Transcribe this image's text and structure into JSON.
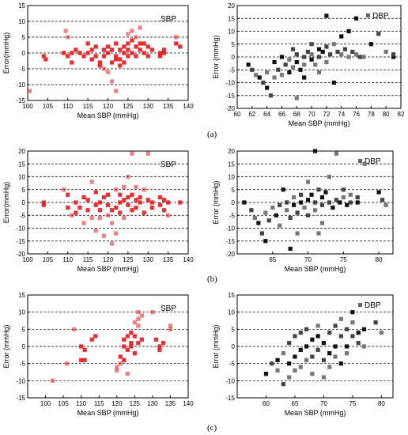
{
  "chart_data": [
    {
      "type": "scatter",
      "panel": "a",
      "side": "left",
      "legend": "SBP",
      "legend_position": "top-right",
      "xlabel": "Mean SBP (mmHg)",
      "ylabel": "Error(mmHg)",
      "xlim": [
        100,
        140
      ],
      "ylim": [
        -15,
        15
      ],
      "xticks": [
        100,
        105,
        110,
        115,
        120,
        125,
        130,
        135,
        140
      ],
      "yticks": [
        -15,
        -10,
        -5,
        0,
        5,
        10,
        15
      ],
      "grid": "horizontal-dashed",
      "color": "#e41a1c",
      "points": [
        [
          100.5,
          -12
        ],
        [
          104,
          -1
        ],
        [
          104.5,
          -2
        ],
        [
          109,
          0
        ],
        [
          109.5,
          7
        ],
        [
          110,
          5
        ],
        [
          110,
          -1
        ],
        [
          111,
          -3
        ],
        [
          111,
          0
        ],
        [
          112,
          1
        ],
        [
          113,
          0
        ],
        [
          114,
          -1
        ],
        [
          115,
          0
        ],
        [
          115,
          3
        ],
        [
          116,
          1
        ],
        [
          116,
          -2
        ],
        [
          117,
          -1
        ],
        [
          117,
          2
        ],
        [
          118,
          -3
        ],
        [
          118,
          -4
        ],
        [
          119,
          -5
        ],
        [
          119,
          -1
        ],
        [
          119,
          1
        ],
        [
          120,
          -6
        ],
        [
          120,
          0
        ],
        [
          120,
          2
        ],
        [
          121,
          -3
        ],
        [
          121,
          -9
        ],
        [
          121,
          1
        ],
        [
          122,
          -12
        ],
        [
          122,
          -1
        ],
        [
          122,
          -2
        ],
        [
          122,
          3
        ],
        [
          123,
          1
        ],
        [
          123,
          -4
        ],
        [
          123,
          -2
        ],
        [
          124,
          0
        ],
        [
          124,
          2
        ],
        [
          124,
          -3
        ],
        [
          125,
          3
        ],
        [
          125,
          1
        ],
        [
          125,
          6
        ],
        [
          125,
          -1
        ],
        [
          126,
          0
        ],
        [
          126,
          4
        ],
        [
          126,
          7
        ],
        [
          127,
          2
        ],
        [
          127,
          5
        ],
        [
          127,
          -1
        ],
        [
          128,
          3
        ],
        [
          128,
          8
        ],
        [
          128,
          1
        ],
        [
          129,
          0
        ],
        [
          129,
          3
        ],
        [
          130,
          -1
        ],
        [
          130,
          2
        ],
        [
          131,
          1
        ],
        [
          133,
          0
        ],
        [
          133,
          -1
        ],
        [
          134,
          0
        ],
        [
          134,
          1
        ],
        [
          137,
          5
        ],
        [
          137,
          3
        ],
        [
          138,
          2
        ]
      ]
    },
    {
      "type": "scatter",
      "panel": "a",
      "side": "right",
      "legend": "DBP",
      "legend_position": "top-right",
      "xlabel": "Mean SBP (mmHg)",
      "ylabel": "Error (mmHg)",
      "xlim": [
        60,
        82
      ],
      "ylim": [
        -20,
        20
      ],
      "xticks": [
        60,
        62,
        64,
        66,
        68,
        70,
        72,
        74,
        76,
        78,
        80,
        82
      ],
      "yticks": [
        -20,
        -15,
        -10,
        -5,
        0,
        5,
        10,
        15,
        20
      ],
      "grid": "horizontal-dashed",
      "color": "#333333",
      "points": [
        [
          61.5,
          -3
        ],
        [
          62,
          -5
        ],
        [
          62.5,
          -7
        ],
        [
          63,
          -8
        ],
        [
          63.5,
          -10
        ],
        [
          64,
          -6
        ],
        [
          64,
          -12
        ],
        [
          64.5,
          -15
        ],
        [
          65,
          -8
        ],
        [
          65,
          -2
        ],
        [
          65.5,
          -5
        ],
        [
          66,
          -7
        ],
        [
          66,
          0
        ],
        [
          66.5,
          -3
        ],
        [
          67,
          -1
        ],
        [
          67,
          -6
        ],
        [
          67.5,
          3
        ],
        [
          67.5,
          -4
        ],
        [
          68,
          -2
        ],
        [
          68,
          1
        ],
        [
          68,
          -16
        ],
        [
          68.5,
          -5
        ],
        [
          69,
          0
        ],
        [
          69,
          -3
        ],
        [
          69,
          -8
        ],
        [
          69.5,
          2
        ],
        [
          70,
          1
        ],
        [
          70,
          -1
        ],
        [
          70,
          5
        ],
        [
          70.5,
          -3
        ],
        [
          71,
          3
        ],
        [
          71,
          0
        ],
        [
          71,
          -6
        ],
        [
          71.5,
          2
        ],
        [
          72,
          4
        ],
        [
          72,
          -2
        ],
        [
          72,
          16
        ],
        [
          72.5,
          1
        ],
        [
          73,
          5
        ],
        [
          73,
          -10
        ],
        [
          73.5,
          2
        ],
        [
          74,
          1
        ],
        [
          74,
          8
        ],
        [
          74.5,
          3
        ],
        [
          75,
          0
        ],
        [
          75,
          10
        ],
        [
          75.5,
          2
        ],
        [
          76,
          1
        ],
        [
          76,
          15
        ],
        [
          76.5,
          0
        ],
        [
          77,
          0
        ],
        [
          78,
          5
        ],
        [
          79,
          9
        ],
        [
          80,
          2
        ],
        [
          81,
          0
        ],
        [
          81,
          1
        ]
      ]
    },
    {
      "type": "scatter",
      "panel": "b",
      "side": "left",
      "legend": "SBP",
      "legend_position": "top-right",
      "xlabel": "Mean SBP (mmHg)",
      "ylabel": "Error(mmHg)",
      "xlim": [
        100,
        140
      ],
      "ylim": [
        -20,
        20
      ],
      "xticks": [
        100,
        105,
        110,
        115,
        120,
        125,
        130,
        135,
        140
      ],
      "yticks": [
        -20,
        -15,
        -10,
        -5,
        0,
        5,
        10,
        15,
        20
      ],
      "grid": "horizontal-dashed",
      "color": "#e41a1c",
      "points": [
        [
          104,
          0
        ],
        [
          104,
          -1
        ],
        [
          109,
          5
        ],
        [
          110,
          -2
        ],
        [
          110,
          3
        ],
        [
          111,
          -5
        ],
        [
          112,
          0
        ],
        [
          112,
          -4
        ],
        [
          113,
          -2
        ],
        [
          114,
          -8
        ],
        [
          114,
          2
        ],
        [
          115,
          1
        ],
        [
          115,
          -3
        ],
        [
          116,
          -6
        ],
        [
          116,
          8
        ],
        [
          117,
          -1
        ],
        [
          117,
          -11
        ],
        [
          117,
          4
        ],
        [
          118,
          0
        ],
        [
          118,
          -3
        ],
        [
          118,
          -6
        ],
        [
          119,
          2
        ],
        [
          119,
          -13
        ],
        [
          120,
          -1
        ],
        [
          120,
          -5
        ],
        [
          120,
          3
        ],
        [
          121,
          -3
        ],
        [
          121,
          -8
        ],
        [
          121,
          -16
        ],
        [
          122,
          -2
        ],
        [
          122,
          5
        ],
        [
          122,
          -12
        ],
        [
          123,
          0
        ],
        [
          123,
          -4
        ],
        [
          123,
          3
        ],
        [
          124,
          1
        ],
        [
          124,
          -6
        ],
        [
          124,
          6
        ],
        [
          125,
          2
        ],
        [
          125,
          -1
        ],
        [
          125,
          10
        ],
        [
          126,
          3
        ],
        [
          126,
          -3
        ],
        [
          126,
          19
        ],
        [
          127,
          1
        ],
        [
          127,
          -2
        ],
        [
          127,
          6
        ],
        [
          128,
          0
        ],
        [
          128,
          2
        ],
        [
          129,
          5
        ],
        [
          129,
          -4
        ],
        [
          130,
          19
        ],
        [
          130,
          1
        ],
        [
          131,
          0
        ],
        [
          131,
          -2
        ],
        [
          133,
          -1
        ],
        [
          133,
          2
        ],
        [
          134,
          1
        ],
        [
          134,
          -3
        ],
        [
          135,
          0
        ],
        [
          135,
          -5
        ],
        [
          138,
          0
        ]
      ]
    },
    {
      "type": "scatter",
      "panel": "b",
      "side": "right",
      "legend": "DBP",
      "legend_position": "top-right",
      "xlabel": "Mean SBP (mmHg)",
      "ylabel": "Error (mmHg)",
      "xlim": [
        60,
        82
      ],
      "ylim": [
        -20,
        20
      ],
      "xticks": [
        65,
        70,
        75,
        80
      ],
      "yticks": [
        -20,
        -15,
        -10,
        -5,
        0,
        5,
        10,
        15,
        20
      ],
      "grid": "horizontal-dashed",
      "color": "#333333",
      "points": [
        [
          61,
          0
        ],
        [
          62,
          -3
        ],
        [
          62.5,
          -6
        ],
        [
          63,
          -8
        ],
        [
          63.5,
          -12
        ],
        [
          64,
          -4
        ],
        [
          64,
          -15
        ],
        [
          64.5,
          -7
        ],
        [
          65,
          -2
        ],
        [
          65.5,
          -5
        ],
        [
          66,
          -1
        ],
        [
          66,
          -9
        ],
        [
          66.5,
          5
        ],
        [
          67,
          0
        ],
        [
          67,
          -3
        ],
        [
          67.5,
          -18
        ],
        [
          67.5,
          -6
        ],
        [
          68,
          2
        ],
        [
          68,
          -1
        ],
        [
          68.5,
          -4
        ],
        [
          68.5,
          -12
        ],
        [
          69,
          0
        ],
        [
          69,
          3
        ],
        [
          69.5,
          -2
        ],
        [
          70,
          1
        ],
        [
          70,
          -5
        ],
        [
          70,
          8
        ],
        [
          70.5,
          3
        ],
        [
          71,
          0
        ],
        [
          71,
          -3
        ],
        [
          71,
          20
        ],
        [
          71.5,
          5
        ],
        [
          71.5,
          -12
        ],
        [
          72,
          2
        ],
        [
          72,
          -1
        ],
        [
          72,
          -8
        ],
        [
          72.5,
          4
        ],
        [
          73,
          0
        ],
        [
          73,
          10
        ],
        [
          73.5,
          -2
        ],
        [
          74,
          1
        ],
        [
          74,
          19
        ],
        [
          74.5,
          0
        ],
        [
          75,
          5
        ],
        [
          75,
          2
        ],
        [
          75.5,
          -1
        ],
        [
          76,
          0
        ],
        [
          76,
          3
        ],
        [
          77,
          0
        ],
        [
          77,
          2
        ],
        [
          78,
          15
        ],
        [
          80,
          4
        ],
        [
          80.5,
          1
        ],
        [
          81,
          -1
        ]
      ]
    },
    {
      "type": "scatter",
      "panel": "c",
      "side": "left",
      "legend": "SBP",
      "legend_position": "top-right",
      "xlabel": "Mean SBP (mmHg)",
      "ylabel": "Error (mmHg)",
      "xlim": [
        95,
        140
      ],
      "ylim": [
        -15,
        15
      ],
      "xticks": [
        100,
        105,
        110,
        115,
        120,
        125,
        130,
        135,
        140
      ],
      "yticks": [
        -15,
        -10,
        -5,
        0,
        5,
        10,
        15
      ],
      "grid": "horizontal-dashed",
      "color": "#e41a1c",
      "points": [
        [
          102,
          -10
        ],
        [
          106,
          -5
        ],
        [
          108,
          5
        ],
        [
          110,
          -4
        ],
        [
          110,
          0
        ],
        [
          111,
          -1
        ],
        [
          111,
          -4
        ],
        [
          113,
          2
        ],
        [
          114,
          3
        ],
        [
          120,
          -7
        ],
        [
          120,
          -6
        ],
        [
          121,
          -5
        ],
        [
          121,
          -3
        ],
        [
          122,
          -4
        ],
        [
          122,
          0
        ],
        [
          122,
          2
        ],
        [
          123,
          -8
        ],
        [
          123,
          3
        ],
        [
          123,
          -1
        ],
        [
          124,
          1
        ],
        [
          124,
          4
        ],
        [
          124,
          0
        ],
        [
          125,
          7
        ],
        [
          125,
          -2
        ],
        [
          125,
          3
        ],
        [
          126,
          6
        ],
        [
          126,
          8
        ],
        [
          126,
          10
        ],
        [
          126,
          1
        ],
        [
          127,
          9
        ],
        [
          127,
          2
        ],
        [
          130,
          10
        ],
        [
          131,
          2
        ],
        [
          132,
          0
        ],
        [
          132,
          -1
        ],
        [
          133,
          1
        ],
        [
          135,
          5
        ],
        [
          135,
          6
        ]
      ]
    },
    {
      "type": "scatter",
      "panel": "c",
      "side": "right",
      "legend": "DBP",
      "legend_position": "top-right",
      "xlabel": "Mean SBP (mmHg)",
      "ylabel": "Error (mmHg)",
      "xlim": [
        55,
        82
      ],
      "ylim": [
        -15,
        15
      ],
      "xticks": [
        60,
        65,
        70,
        75,
        80
      ],
      "yticks": [
        -15,
        -10,
        -5,
        0,
        5,
        10,
        15
      ],
      "grid": "horizontal-dashed",
      "color": "#333333",
      "points": [
        [
          60,
          -8
        ],
        [
          61,
          -5
        ],
        [
          62,
          -7
        ],
        [
          62,
          -4
        ],
        [
          63,
          -11
        ],
        [
          63,
          -2
        ],
        [
          64,
          -5
        ],
        [
          64,
          1
        ],
        [
          64,
          -9
        ],
        [
          65,
          -3
        ],
        [
          65,
          3
        ],
        [
          65,
          -7
        ],
        [
          66,
          -1
        ],
        [
          66,
          4
        ],
        [
          66,
          -6
        ],
        [
          67,
          0
        ],
        [
          67,
          5
        ],
        [
          67,
          -4
        ],
        [
          68,
          2
        ],
        [
          68,
          -3
        ],
        [
          68,
          -8
        ],
        [
          69,
          3
        ],
        [
          69,
          -1
        ],
        [
          69,
          6
        ],
        [
          70,
          1
        ],
        [
          70,
          -4
        ],
        [
          70,
          -9
        ],
        [
          71,
          -2
        ],
        [
          71,
          4
        ],
        [
          71,
          -6
        ],
        [
          72,
          0
        ],
        [
          72,
          6
        ],
        [
          72,
          -3
        ],
        [
          73,
          -5
        ],
        [
          73,
          3
        ],
        [
          73,
          8
        ],
        [
          74,
          0
        ],
        [
          74,
          5
        ],
        [
          74,
          -2
        ],
        [
          75,
          10
        ],
        [
          75,
          3
        ],
        [
          75,
          7
        ],
        [
          76,
          4
        ],
        [
          76,
          1
        ],
        [
          77,
          0
        ],
        [
          77,
          5
        ],
        [
          79,
          7
        ],
        [
          80,
          4
        ]
      ]
    }
  ],
  "panel_labels": [
    "(a)",
    "(b)",
    "(c)"
  ]
}
